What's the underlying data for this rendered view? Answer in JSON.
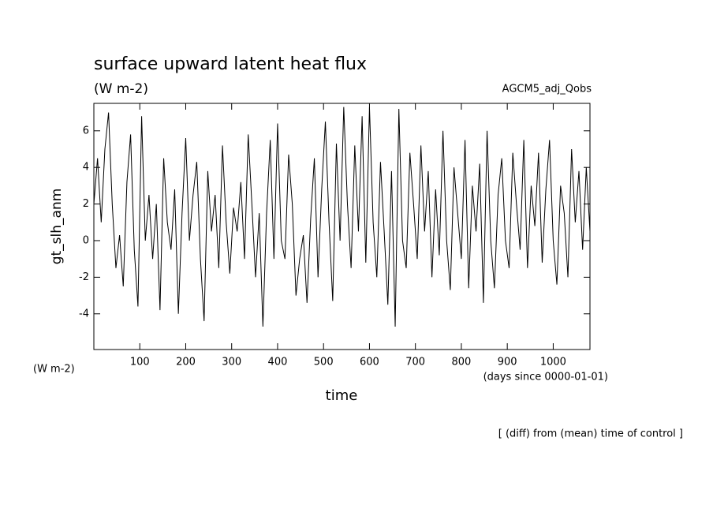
{
  "chart_data": {
    "type": "line",
    "title": "surface upward latent heat flux",
    "subtitle": "(W m-2)",
    "annotation": "AGCM5_adj_Qobs",
    "ylabel": "gt_slh_anm",
    "yunits": "(W m-2)",
    "xunits": "(days since 0000-01-01)",
    "xlabel": "time",
    "note": "[ (diff) from (mean) time of control ]",
    "color": "#000000",
    "x": [
      0,
      8,
      16,
      24,
      32,
      40,
      48,
      56,
      64,
      72,
      80,
      88,
      96,
      104,
      112,
      120,
      128,
      136,
      144,
      152,
      160,
      168,
      176,
      184,
      192,
      200,
      208,
      216,
      224,
      232,
      240,
      248,
      256,
      264,
      272,
      280,
      288,
      296,
      304,
      312,
      320,
      328,
      336,
      344,
      352,
      360,
      368,
      376,
      384,
      392,
      400,
      408,
      416,
      424,
      432,
      440,
      448,
      456,
      464,
      472,
      480,
      488,
      496,
      504,
      512,
      520,
      528,
      536,
      544,
      552,
      560,
      568,
      576,
      584,
      592,
      600,
      608,
      616,
      624,
      632,
      640,
      648,
      656,
      664,
      672,
      680,
      688,
      696,
      704,
      712,
      720,
      728,
      736,
      744,
      752,
      760,
      768,
      776,
      784,
      792,
      800,
      808,
      816,
      824,
      832,
      840,
      848,
      856,
      864,
      872,
      880,
      888,
      896,
      904,
      912,
      920,
      928,
      936,
      944,
      952,
      960,
      968,
      976,
      984,
      992,
      1000,
      1008,
      1016,
      1024,
      1032,
      1040,
      1048,
      1056,
      1064,
      1072,
      1080
    ],
    "values": [
      2,
      4.5,
      1,
      5,
      7,
      2,
      -1.5,
      0.3,
      -2.5,
      3.2,
      5.8,
      -0.5,
      -3.6,
      6.8,
      0,
      2.5,
      -1,
      2,
      -3.8,
      4.5,
      1,
      -0.5,
      2.8,
      -4,
      1.5,
      5.6,
      0,
      2.5,
      4.3,
      -1,
      -4.4,
      3.8,
      0.5,
      2.5,
      -1.5,
      5.2,
      1,
      -1.8,
      1.8,
      0.5,
      3.2,
      -1,
      5.8,
      2,
      -2,
      1.5,
      -4.7,
      1.5,
      5.5,
      -1,
      6.4,
      0,
      -1,
      4.7,
      2,
      -3,
      -1,
      0.3,
      -3.4,
      1.2,
      4.5,
      -2,
      2.8,
      6.5,
      1,
      -3.3,
      5.3,
      0,
      7.3,
      2,
      -1.5,
      5.2,
      0.5,
      6.8,
      -1.2,
      7.3,
      1,
      -2,
      4.3,
      0.5,
      -3.5,
      3.8,
      -4.7,
      7.2,
      0,
      -1.5,
      4.8,
      2,
      -1,
      5.2,
      0.5,
      3.8,
      -2,
      2.8,
      -0.8,
      6,
      0,
      -2.7,
      4,
      1.5,
      -1,
      5.5,
      -2.6,
      3,
      0.5,
      4.2,
      -3.4,
      6,
      0,
      -2.6,
      2.5,
      4.5,
      0,
      -1.5,
      4.8,
      2,
      -0.5,
      5.5,
      -1.5,
      3,
      0.8,
      4.8,
      -1.2,
      2.8,
      5.5,
      0,
      -2.4,
      3,
      1.5,
      -2,
      5,
      1,
      3.8,
      -0.5,
      4,
      0.5
    ],
    "xlim": [
      0,
      1080
    ],
    "ylim": [
      -5.95,
      7.5
    ],
    "xticks": [
      100,
      200,
      300,
      400,
      500,
      600,
      700,
      800,
      900,
      1000
    ],
    "yticks": [
      -4,
      -2,
      0,
      2,
      4,
      6
    ]
  }
}
